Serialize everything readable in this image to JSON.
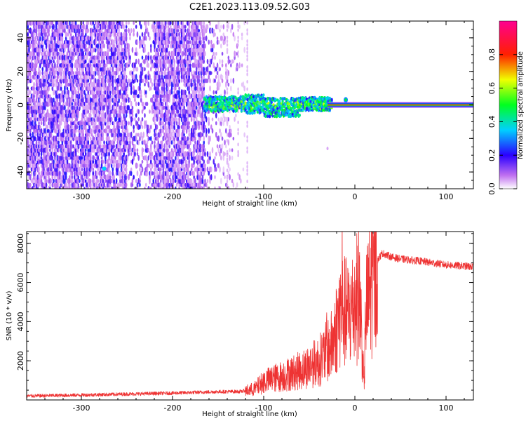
{
  "figure_title": "C2E1.2023.113.09.52.G03",
  "chart_data": [
    {
      "type": "heatmap",
      "name": "spectrogram",
      "xlabel": "Height of straight line (km)",
      "ylabel": "Frequency (Hz)",
      "xlim": [
        -360,
        130
      ],
      "ylim": [
        -50,
        50
      ],
      "xticks": [
        -300,
        -200,
        -100,
        0,
        100
      ],
      "xtick_labels": [
        "-300",
        "-200",
        "-100",
        "0",
        "100"
      ],
      "yticks": [
        -40,
        -20,
        0,
        20,
        40
      ],
      "ytick_labels": [
        "-40",
        "-20",
        "0",
        "20",
        "40"
      ],
      "colorbar": {
        "label": "Normalized spectral amplitude",
        "range": [
          0,
          1
        ],
        "ticks": [
          0.0,
          0.2,
          0.4,
          0.6,
          0.8
        ],
        "tick_labels": [
          "0.0",
          "0.2",
          "0.4",
          "0.6",
          "0.8"
        ],
        "colormap": "rainbow (white-purple-blue-cyan-green-yellow-red-pink)"
      },
      "features": {
        "broadband_noise_x_range": [
          -360,
          -120
        ],
        "carrier_frequency_hz": 0,
        "carrier_start_x": -165,
        "carrier_peak_x_range": [
          -30,
          130
        ],
        "carrier_peak_amplitude": 0.9
      }
    },
    {
      "type": "line",
      "name": "snr",
      "xlabel": "Height of straight line (km)",
      "ylabel": "SNR (10 * v/v)",
      "xlim": [
        -360,
        130
      ],
      "ylim": [
        0,
        8600
      ],
      "xticks": [
        -300,
        -200,
        -100,
        0,
        100
      ],
      "xtick_labels": [
        "-300",
        "-200",
        "-100",
        "0",
        "100"
      ],
      "yticks": [
        2000,
        4000,
        6000,
        8000
      ],
      "ytick_labels": [
        "2000",
        "4000",
        "6000",
        "8000"
      ],
      "series": [
        {
          "name": "SNR",
          "color": "#ee3333",
          "x": [
            -360,
            -300,
            -250,
            -200,
            -150,
            -125,
            -110,
            -100,
            -80,
            -60,
            -40,
            -25,
            -15,
            -8,
            0,
            5,
            8,
            10,
            12,
            20,
            30,
            40,
            50,
            70,
            100,
            130
          ],
          "y": [
            200,
            250,
            300,
            350,
            420,
            430,
            600,
            1000,
            1300,
            1600,
            2100,
            3000,
            5000,
            4600,
            5200,
            6000,
            3000,
            700,
            4800,
            6800,
            7500,
            7300,
            7200,
            7100,
            6900,
            6800
          ]
        }
      ]
    }
  ]
}
